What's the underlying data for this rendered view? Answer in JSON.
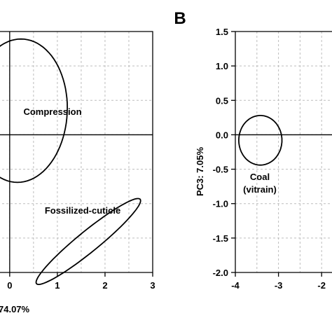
{
  "chart_data": [
    {
      "type": "scatter",
      "panel_label": "",
      "title": "",
      "xlabel": "74.07%",
      "ylabel": "",
      "xlim": [
        -0.6,
        3
      ],
      "ylim": [
        -2.0,
        1.5
      ],
      "x_ticks": [
        {
          "value": 0,
          "label": "0"
        },
        {
          "value": 1,
          "label": "1"
        },
        {
          "value": 2,
          "label": "2"
        },
        {
          "value": 3,
          "label": "3"
        }
      ],
      "y_ticks": [],
      "grid": true,
      "ellipses": [
        {
          "name": "Compression",
          "label": "Compression",
          "cx": 0.2,
          "cy": 0.35,
          "rx": 1.05,
          "ry": 1.0,
          "angle_deg": 65
        },
        {
          "name": "Fossilized-cuticle",
          "label": "Fossilized-cuticle",
          "cx": 1.65,
          "cy": -1.55,
          "rx": 1.25,
          "ry": 0.17,
          "angle_deg": 29
        }
      ]
    },
    {
      "type": "scatter",
      "panel_label": "B",
      "title": "",
      "xlabel": "",
      "ylabel": "PC3: 7.05%",
      "xlim": [
        -4,
        -1.5
      ],
      "ylim": [
        -2.0,
        1.5
      ],
      "x_ticks": [
        {
          "value": -4,
          "label": "-4"
        },
        {
          "value": -3,
          "label": "-3"
        },
        {
          "value": -2,
          "label": "-2"
        }
      ],
      "y_ticks": [
        {
          "value": 1.5,
          "label": "1.5"
        },
        {
          "value": 1.0,
          "label": "1.0"
        },
        {
          "value": 0.5,
          "label": "0.5"
        },
        {
          "value": 0.0,
          "label": "0.0"
        },
        {
          "value": -0.5,
          "label": "-0.5"
        },
        {
          "value": -1.0,
          "label": "-1.0"
        },
        {
          "value": -1.5,
          "label": "-1.5"
        },
        {
          "value": -2.0,
          "label": "-2.0"
        }
      ],
      "grid": true,
      "ellipses": [
        {
          "name": "Coal (vitrain)",
          "label_lines": [
            "Coal",
            "(vitrain)"
          ],
          "cx": -3.42,
          "cy": -0.08,
          "rx": 0.5,
          "ry": 0.36,
          "angle_deg": 0
        }
      ]
    }
  ]
}
